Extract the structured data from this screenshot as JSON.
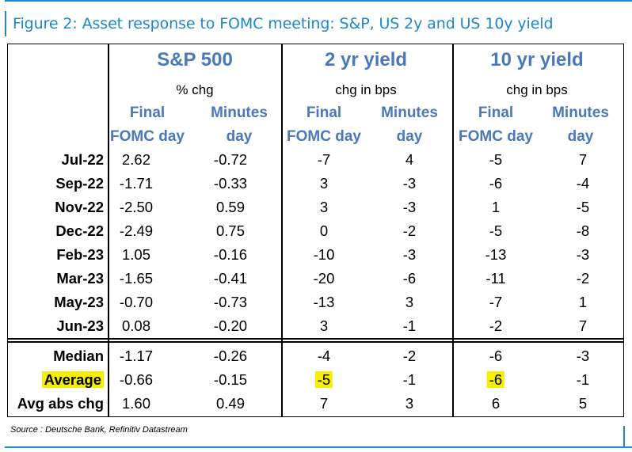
{
  "figure_title": "Figure 2: Asset response to FOMC meeting: S&P, US 2y and US 10y yield",
  "source": "Source : Deutsche Bank, Refinitiv Datastream",
  "accent_color": "#1e87c8",
  "header_color": "#4a78b8",
  "highlight_color": "#f6f000",
  "groups": [
    {
      "title": "S&P 500",
      "unit": "% chg"
    },
    {
      "title": "2 yr yield",
      "unit": "chg in bps"
    },
    {
      "title": "10 yr yield",
      "unit": "chg in bps"
    }
  ],
  "subheaders": {
    "final_1": "Final",
    "final_2": "FOMC day",
    "minutes_1": "Minutes",
    "minutes_2": "day"
  },
  "rows": [
    {
      "label": "Jul-22",
      "values": [
        "2.62",
        "-0.72",
        "-7",
        "4",
        "-5",
        "7"
      ]
    },
    {
      "label": "Sep-22",
      "values": [
        "-1.71",
        "-0.33",
        "3",
        "-3",
        "-6",
        "-4"
      ]
    },
    {
      "label": "Nov-22",
      "values": [
        "-2.50",
        "0.59",
        "3",
        "-3",
        "1",
        "-5"
      ]
    },
    {
      "label": "Dec-22",
      "values": [
        "-2.49",
        "0.75",
        "0",
        "-2",
        "-5",
        "-8"
      ]
    },
    {
      "label": "Feb-23",
      "values": [
        "1.05",
        "-0.16",
        "-10",
        "-3",
        "-13",
        "-3"
      ]
    },
    {
      "label": "Mar-23",
      "values": [
        "-1.65",
        "-0.41",
        "-20",
        "-6",
        "-11",
        "-2"
      ]
    },
    {
      "label": "May-23",
      "values": [
        "-0.70",
        "-0.73",
        "-13",
        "3",
        "-7",
        "1"
      ]
    },
    {
      "label": "Jun-23",
      "values": [
        "0.08",
        "-0.20",
        "3",
        "-1",
        "-2",
        "7"
      ]
    }
  ],
  "summary": [
    {
      "label": "Median",
      "values": [
        "-1.17",
        "-0.26",
        "-4",
        "-2",
        "-6",
        "-3"
      ]
    },
    {
      "label": "Average",
      "values": [
        "-0.66",
        "-0.15",
        "-5",
        "-1",
        "-6",
        "-1"
      ]
    },
    {
      "label": "Avg abs chg",
      "values": [
        "1.60",
        "0.49",
        "7",
        "3",
        "6",
        "5"
      ]
    }
  ]
}
